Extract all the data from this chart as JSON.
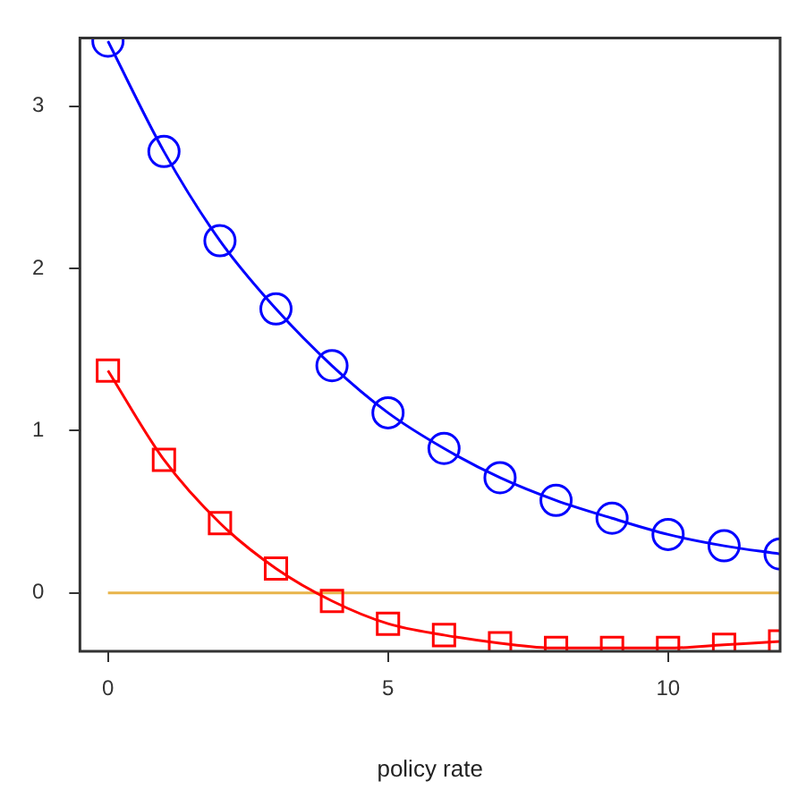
{
  "chart_data": {
    "type": "line",
    "xlabel": "policy rate",
    "x": [
      0,
      1,
      2,
      3,
      4,
      5,
      6,
      7,
      8,
      9,
      10,
      11,
      12
    ],
    "series": [
      {
        "color": "#0000ff",
        "marker": "circle",
        "values": [
          3.4,
          2.72,
          2.17,
          1.75,
          1.4,
          1.11,
          0.89,
          0.71,
          0.57,
          0.46,
          0.36,
          0.29,
          0.24
        ]
      },
      {
        "color": "#ff0000",
        "marker": "square",
        "values": [
          1.37,
          0.82,
          0.43,
          0.15,
          -0.05,
          -0.19,
          -0.26,
          -0.31,
          -0.34,
          -0.34,
          -0.34,
          -0.32,
          -0.3
        ]
      }
    ],
    "ref_lines": [
      {
        "axis": "y",
        "value": 0,
        "color": "#e8b44a"
      }
    ],
    "xlim": [
      -0.5,
      12
    ],
    "xticks": [
      0,
      5,
      10
    ],
    "ylim": [
      -0.36,
      3.42
    ],
    "yticks": [
      0,
      1,
      2,
      3
    ],
    "grid": false,
    "legend": false
  }
}
